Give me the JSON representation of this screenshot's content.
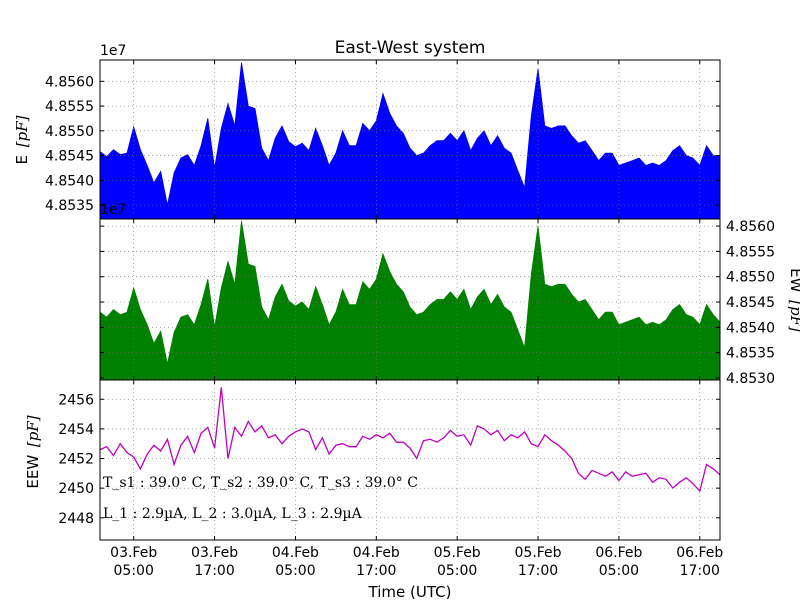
{
  "chart_data": {
    "type": "area",
    "title": "East-West system",
    "xlabel": "Time (UTC)",
    "xlim": [
      "2025-02-03T00:00",
      "2025-02-06T20:00"
    ],
    "x_ticks": [
      {
        "at": "2025-02-03T05:00",
        "line1": "03.Feb",
        "line2": "05:00"
      },
      {
        "at": "2025-02-03T17:00",
        "line1": "03.Feb",
        "line2": "17:00"
      },
      {
        "at": "2025-02-04T05:00",
        "line1": "04.Feb",
        "line2": "05:00"
      },
      {
        "at": "2025-02-04T17:00",
        "line1": "04.Feb",
        "line2": "17:00"
      },
      {
        "at": "2025-02-05T05:00",
        "line1": "05.Feb",
        "line2": "05:00"
      },
      {
        "at": "2025-02-05T17:00",
        "line1": "05.Feb",
        "line2": "17:00"
      },
      {
        "at": "2025-02-06T05:00",
        "line1": "06.Feb",
        "line2": "05:00"
      },
      {
        "at": "2025-02-06T17:00",
        "line1": "06.Feb",
        "line2": "17:00"
      }
    ],
    "grid": true,
    "panels": [
      {
        "name": "E",
        "type": "area",
        "ylabel": "E [pF]",
        "ylabel_main": "E",
        "ylabel_unit": "[pF]",
        "offset_text": "1e7",
        "color": "#0000ff",
        "ylim": [
          4.85322,
          4.85643
        ],
        "y_ticks": [
          "4.8535",
          "4.8540",
          "4.8545",
          "4.8550",
          "4.8555",
          "4.8560"
        ],
        "y_tick_values": [
          4.8535,
          4.854,
          4.8545,
          4.855,
          4.8555,
          4.856
        ],
        "series": [
          {
            "x": [
              "2025-02-03T00:00",
              "2025-02-03T01:00",
              "2025-02-03T02:00",
              "2025-02-03T03:00",
              "2025-02-03T04:00",
              "2025-02-03T05:00",
              "2025-02-03T06:00",
              "2025-02-03T07:00",
              "2025-02-03T08:00",
              "2025-02-03T09:00",
              "2025-02-03T10:00",
              "2025-02-03T11:00",
              "2025-02-03T12:00",
              "2025-02-03T13:00",
              "2025-02-03T14:00",
              "2025-02-03T15:00",
              "2025-02-03T16:00",
              "2025-02-03T17:00",
              "2025-02-03T18:00",
              "2025-02-03T19:00",
              "2025-02-03T20:00",
              "2025-02-03T21:00",
              "2025-02-03T22:00",
              "2025-02-03T23:00",
              "2025-02-04T00:00",
              "2025-02-04T01:00",
              "2025-02-04T02:00",
              "2025-02-04T03:00",
              "2025-02-04T04:00",
              "2025-02-04T05:00",
              "2025-02-04T06:00",
              "2025-02-04T07:00",
              "2025-02-04T08:00",
              "2025-02-04T09:00",
              "2025-02-04T10:00",
              "2025-02-04T11:00",
              "2025-02-04T12:00",
              "2025-02-04T13:00",
              "2025-02-04T14:00",
              "2025-02-04T15:00",
              "2025-02-04T16:00",
              "2025-02-04T17:00",
              "2025-02-04T18:00",
              "2025-02-04T19:00",
              "2025-02-04T20:00",
              "2025-02-04T21:00",
              "2025-02-04T22:00",
              "2025-02-04T23:00",
              "2025-02-05T00:00",
              "2025-02-05T01:00",
              "2025-02-05T02:00",
              "2025-02-05T03:00",
              "2025-02-05T04:00",
              "2025-02-05T05:00",
              "2025-02-05T06:00",
              "2025-02-05T07:00",
              "2025-02-05T08:00",
              "2025-02-05T09:00",
              "2025-02-05T10:00",
              "2025-02-05T11:00",
              "2025-02-05T12:00",
              "2025-02-05T13:00",
              "2025-02-05T14:00",
              "2025-02-05T15:00",
              "2025-02-05T16:00",
              "2025-02-05T17:00",
              "2025-02-05T18:00",
              "2025-02-05T19:00",
              "2025-02-05T20:00",
              "2025-02-05T21:00",
              "2025-02-05T22:00",
              "2025-02-05T23:00",
              "2025-02-06T00:00",
              "2025-02-06T01:00",
              "2025-02-06T02:00",
              "2025-02-06T03:00",
              "2025-02-06T04:00",
              "2025-02-06T05:00",
              "2025-02-06T06:00",
              "2025-02-06T07:00",
              "2025-02-06T08:00",
              "2025-02-06T09:00",
              "2025-02-06T10:00",
              "2025-02-06T11:00",
              "2025-02-06T12:00",
              "2025-02-06T13:00",
              "2025-02-06T14:00",
              "2025-02-06T15:00",
              "2025-02-06T16:00",
              "2025-02-06T17:00",
              "2025-02-06T18:00",
              "2025-02-06T19:00",
              "2025-02-06T20:00"
            ],
            "y": [
              4.85458,
              4.85448,
              4.85462,
              4.85452,
              4.85455,
              4.85508,
              4.85462,
              4.8543,
              4.85395,
              4.85418,
              4.8535,
              4.85415,
              4.85445,
              4.85452,
              4.8543,
              4.8547,
              4.85525,
              4.85425,
              4.85505,
              4.85555,
              4.8551,
              4.85638,
              4.8555,
              4.85545,
              4.85465,
              4.8544,
              4.85485,
              4.8551,
              4.85478,
              4.85468,
              4.85475,
              4.8546,
              4.85505,
              4.8547,
              4.8543,
              4.85455,
              4.855,
              4.8547,
              4.8547,
              4.85515,
              4.855,
              4.8552,
              4.85575,
              4.85535,
              4.8551,
              4.85495,
              4.85465,
              4.8545,
              4.85455,
              4.8547,
              4.8548,
              4.8548,
              4.85495,
              4.8548,
              4.855,
              4.8546,
              4.85485,
              4.855,
              4.8547,
              4.8549,
              4.85465,
              4.85455,
              4.8542,
              4.85385,
              4.8553,
              4.85625,
              4.8551,
              4.85505,
              4.8551,
              4.8551,
              4.8549,
              4.85475,
              4.8548,
              4.8546,
              4.8544,
              4.85455,
              4.85455,
              4.8543,
              4.85435,
              4.8544,
              4.85445,
              4.8543,
              4.85435,
              4.8543,
              4.8544,
              4.8546,
              4.8547,
              4.8545,
              4.85445,
              4.8543,
              4.8547,
              4.8545,
              4.8545
            ]
          }
        ]
      },
      {
        "name": "EW",
        "type": "area",
        "ylabel": "EW [pF]",
        "ylabel_main": "EW",
        "ylabel_unit": "[pF]",
        "offset_text": "1e7",
        "color": "#008000",
        "ylim": [
          4.85296,
          4.85614
        ],
        "y_ticks": [
          "4.8530",
          "4.8535",
          "4.8540",
          "4.8545",
          "4.8550",
          "4.8555",
          "4.8560"
        ],
        "y_tick_values": [
          4.853,
          4.8535,
          4.854,
          4.8545,
          4.855,
          4.8555,
          4.856
        ],
        "series": [
          {
            "x_same_as": "E",
            "y": [
              4.8543,
              4.8542,
              4.85435,
              4.85425,
              4.8543,
              4.85478,
              4.85435,
              4.85405,
              4.85368,
              4.85392,
              4.85328,
              4.8539,
              4.8542,
              4.85425,
              4.85405,
              4.85445,
              4.85495,
              4.854,
              4.85478,
              4.8553,
              4.85485,
              4.8561,
              4.85525,
              4.8552,
              4.8544,
              4.85415,
              4.8546,
              4.85485,
              4.85452,
              4.85442,
              4.8545,
              4.85435,
              4.8548,
              4.85445,
              4.85405,
              4.8543,
              4.85475,
              4.85445,
              4.85445,
              4.8549,
              4.85475,
              4.85495,
              4.85545,
              4.8551,
              4.85485,
              4.8547,
              4.8544,
              4.85425,
              4.8543,
              4.85445,
              4.85455,
              4.85455,
              4.8547,
              4.85455,
              4.85475,
              4.85435,
              4.8546,
              4.85475,
              4.85445,
              4.85465,
              4.8544,
              4.8543,
              4.85395,
              4.8536,
              4.85505,
              4.856,
              4.85485,
              4.8548,
              4.85485,
              4.85485,
              4.85465,
              4.8545,
              4.85455,
              4.85435,
              4.85415,
              4.8543,
              4.8543,
              4.85405,
              4.8541,
              4.85415,
              4.8542,
              4.85405,
              4.8541,
              4.85405,
              4.85415,
              4.85435,
              4.85445,
              4.85425,
              4.8542,
              4.85405,
              4.85445,
              4.85425,
              4.8541
            ]
          }
        ]
      },
      {
        "name": "EEW",
        "type": "line",
        "ylabel": "EEW [pF]",
        "ylabel_main": "EEW",
        "ylabel_unit": "[pF]",
        "color": "#bf00bf",
        "ylim": [
          2446.5,
          2457.3
        ],
        "y_ticks": [
          "2448",
          "2450",
          "2452",
          "2454",
          "2456"
        ],
        "y_tick_values": [
          2448,
          2450,
          2452,
          2454,
          2456
        ],
        "series": [
          {
            "x_same_as": "E",
            "y": [
              2452.6,
              2452.8,
              2452.2,
              2453.0,
              2452.4,
              2452.1,
              2451.3,
              2452.3,
              2452.9,
              2452.5,
              2453.3,
              2451.6,
              2452.9,
              2453.5,
              2452.4,
              2453.7,
              2454.1,
              2452.7,
              2456.8,
              2452.0,
              2454.1,
              2453.5,
              2454.5,
              2453.8,
              2454.2,
              2453.4,
              2453.6,
              2453.0,
              2453.5,
              2453.8,
              2454.0,
              2453.8,
              2452.6,
              2453.4,
              2452.3,
              2452.9,
              2453.0,
              2452.8,
              2452.8,
              2453.5,
              2453.3,
              2453.6,
              2453.4,
              2453.7,
              2453.1,
              2453.1,
              2452.7,
              2452.0,
              2453.2,
              2453.3,
              2453.1,
              2453.4,
              2453.9,
              2453.5,
              2453.6,
              2452.9,
              2454.2,
              2454.0,
              2453.6,
              2453.9,
              2453.2,
              2453.6,
              2453.4,
              2453.8,
              2453.0,
              2452.8,
              2453.6,
              2453.2,
              2452.9,
              2452.5,
              2452.0,
              2451.0,
              2450.6,
              2451.2,
              2451.0,
              2450.8,
              2451.1,
              2450.5,
              2451.1,
              2450.8,
              2450.9,
              2451.0,
              2450.4,
              2450.7,
              2450.6,
              2450.0,
              2450.4,
              2450.7,
              2450.3,
              2449.8,
              2451.6,
              2451.3,
              2450.9
            ]
          }
        ]
      }
    ],
    "annotations": [
      {
        "name": "temps",
        "text": "T_s1 : 39.0° C, T_s2 : 39.0° C, T_s3 : 39.0° C"
      },
      {
        "name": "currents",
        "text": "L_1 : 2.9µA, L_2 : 3.0µA, L_3 : 2.9µA"
      }
    ]
  }
}
